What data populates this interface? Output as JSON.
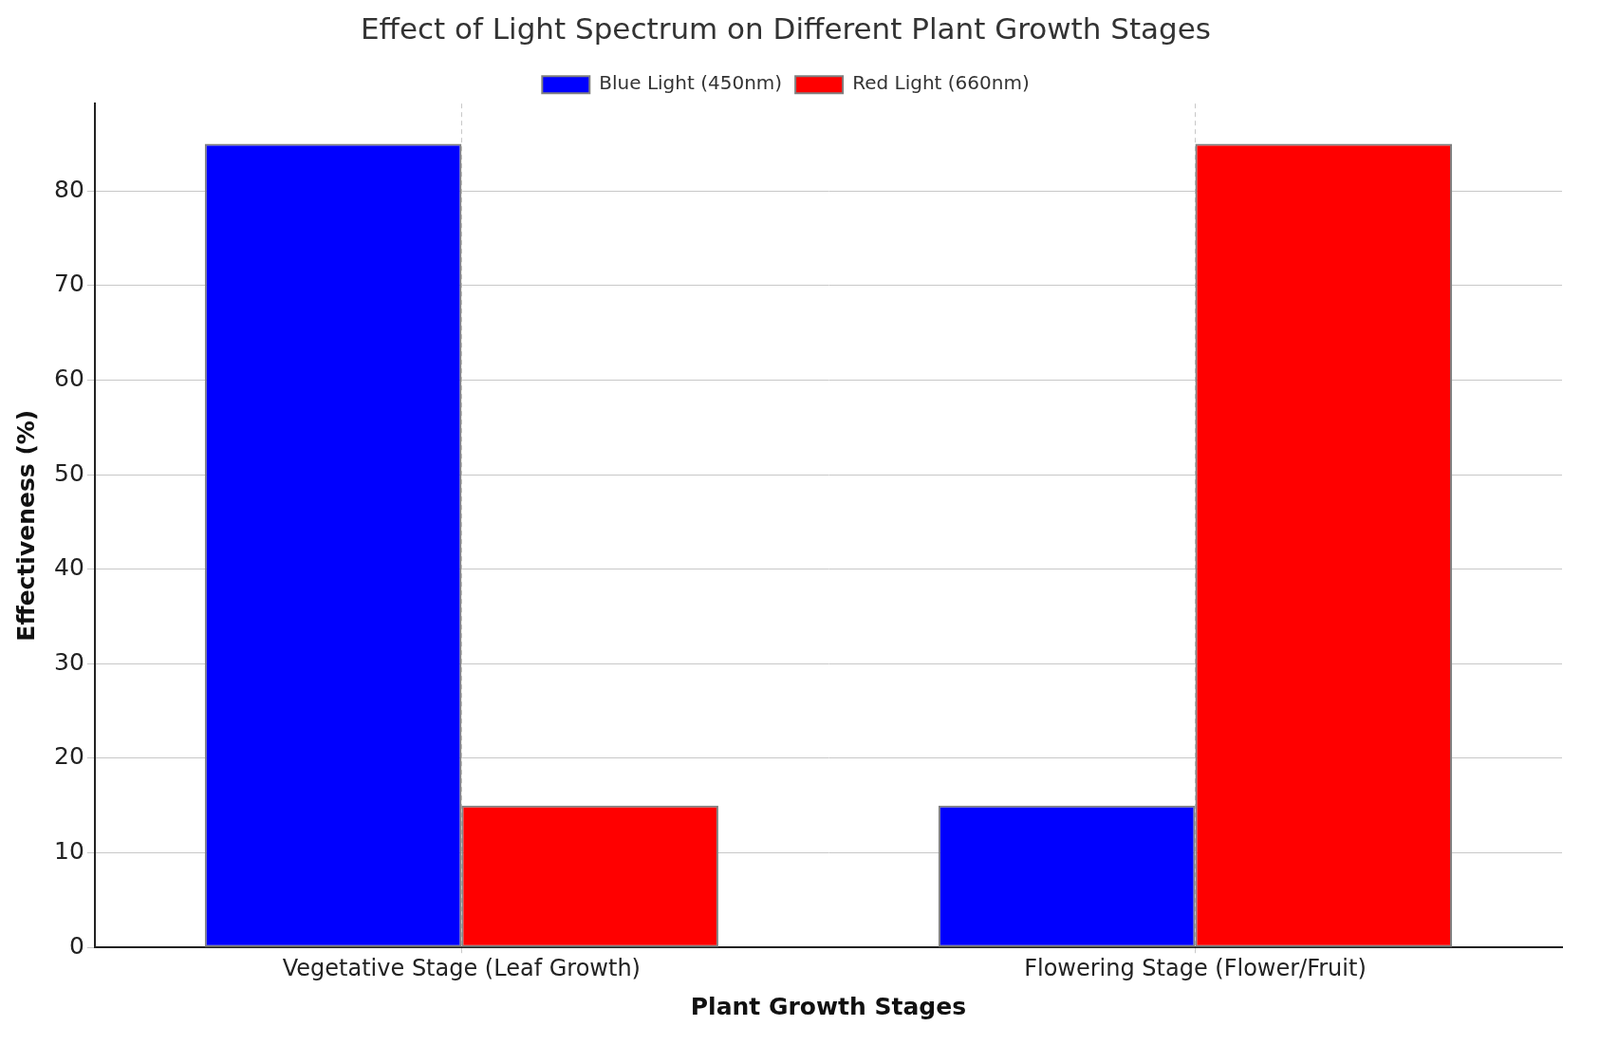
{
  "chart_data": {
    "type": "bar",
    "title": "Effect of Light Spectrum on Different Plant Growth Stages",
    "x_label": "Plant Growth Stages",
    "y_label": "Effectiveness (%)",
    "categories": [
      "Vegetative Stage (Leaf Growth)",
      "Flowering Stage (Flower/Fruit)"
    ],
    "series": [
      {
        "name": "Blue Light (450nm)",
        "color": "#0000ff",
        "values": [
          85,
          15
        ]
      },
      {
        "name": "Red Light (660nm)",
        "color": "#ff0000",
        "values": [
          15,
          85
        ]
      }
    ],
    "ylim": [
      0,
      89.25
    ],
    "yticks": [
      0,
      10,
      20,
      30,
      40,
      50,
      60,
      70,
      80
    ],
    "grid": true,
    "legend": "upper center"
  }
}
